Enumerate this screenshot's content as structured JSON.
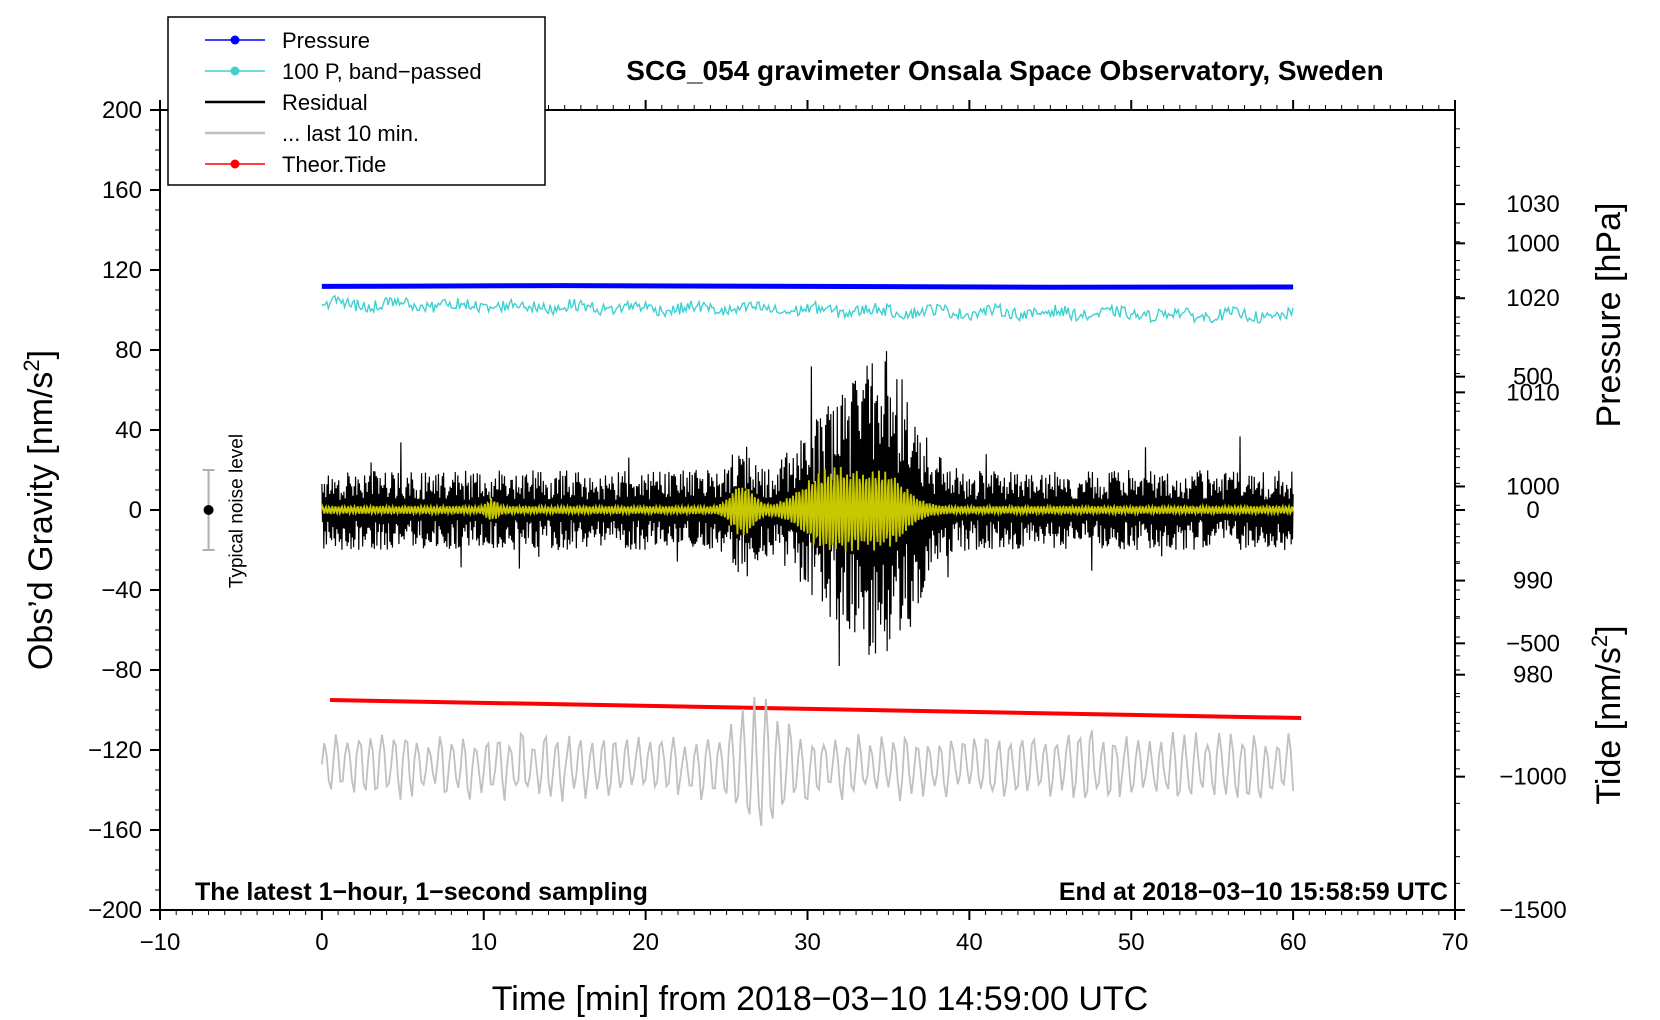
{
  "chart_data": {
    "type": "line",
    "title": "SCG_054 gravimeter Onsala Space Observatory, Sweden",
    "xlabel": "Time [min] from 2018−03−10 14:59:00 UTC",
    "ylabel_left": "Obs’d Gravity [nm/s²]",
    "ylabel_right_top": "Pressure [hPa]",
    "ylabel_right_bottom": "Tide [nm/s²]",
    "xlim": [
      -10,
      70
    ],
    "ylim": [
      -200,
      200
    ],
    "xticks": [
      -10,
      0,
      10,
      20,
      30,
      40,
      50,
      60,
      70
    ],
    "xtick_labels": [
      "−10",
      "0",
      "10",
      "20",
      "30",
      "40",
      "50",
      "60",
      "70"
    ],
    "yticks": [
      200,
      160,
      120,
      80,
      40,
      0,
      -40,
      -80,
      -120,
      -160,
      -200
    ],
    "ytick_labels": [
      "200",
      "160",
      "120",
      "80",
      "40",
      "0",
      "−40",
      "−80",
      "−120",
      "−160",
      "−200"
    ],
    "pressure_axis": {
      "range_hpa": [
        955,
        1040
      ],
      "ticks": [
        980,
        990,
        1000,
        1010,
        1020,
        1030
      ],
      "tick_labels": [
        "980",
        "990",
        "1000",
        "1010",
        "1020",
        "1030"
      ]
    },
    "tide_axis": {
      "range": [
        -1500,
        1500
      ],
      "ticks": [
        -1500,
        -1000,
        -500,
        0,
        500,
        1000
      ],
      "tick_labels": [
        "−1500",
        "−1000",
        "−500",
        "0",
        "500",
        "1000"
      ]
    },
    "notes": {
      "left": "The latest 1−hour, 1−second sampling",
      "right": "End at 2018−03−10 15:58:59 UTC"
    },
    "noise_bar": {
      "x": -7,
      "center": 0,
      "half_range": 20,
      "label": "Typical noise level"
    },
    "legend": [
      {
        "label": "Pressure",
        "color": "#0000ff",
        "marker": true
      },
      {
        "label": "100 P, band−passed",
        "color": "#40d0d0",
        "marker": true
      },
      {
        "label": "Residual",
        "color": "#000000",
        "marker": false
      },
      {
        "label": "... last 10 min.",
        "color": "#c0c0c0",
        "marker": false
      },
      {
        "label": "Theor.Tide",
        "color": "#ff0000",
        "marker": true
      }
    ],
    "series": [
      {
        "name": "Pressure",
        "color": "#0000ff",
        "x": [
          0,
          15,
          30,
          45,
          60
        ],
        "y": [
          111.8,
          112.2,
          111.8,
          111.4,
          111.5
        ]
      },
      {
        "name": "Theor.Tide",
        "color": "#ff0000",
        "x": [
          0.5,
          60.5
        ],
        "y": [
          -95,
          -104
        ]
      },
      {
        "name": "100 P, band−passed",
        "color": "#40d0d0",
        "x_range": [
          0,
          60
        ],
        "baseline": 103,
        "end_baseline": 97,
        "amplitude": 3
      },
      {
        "name": "Residual",
        "color": "#000000",
        "x_range": [
          0,
          60
        ],
        "baseline": 0,
        "amplitude_quiet": 20,
        "peak_amplitude": 80
      },
      {
        "name": "... last 10 min.",
        "color": "#c0c0c0",
        "x_range": [
          0,
          60
        ],
        "baseline": -128,
        "amplitude": 18
      }
    ],
    "filtered_overlay": {
      "color": "#c8c800",
      "x_range": [
        0,
        60
      ],
      "baseline": 0
    }
  }
}
